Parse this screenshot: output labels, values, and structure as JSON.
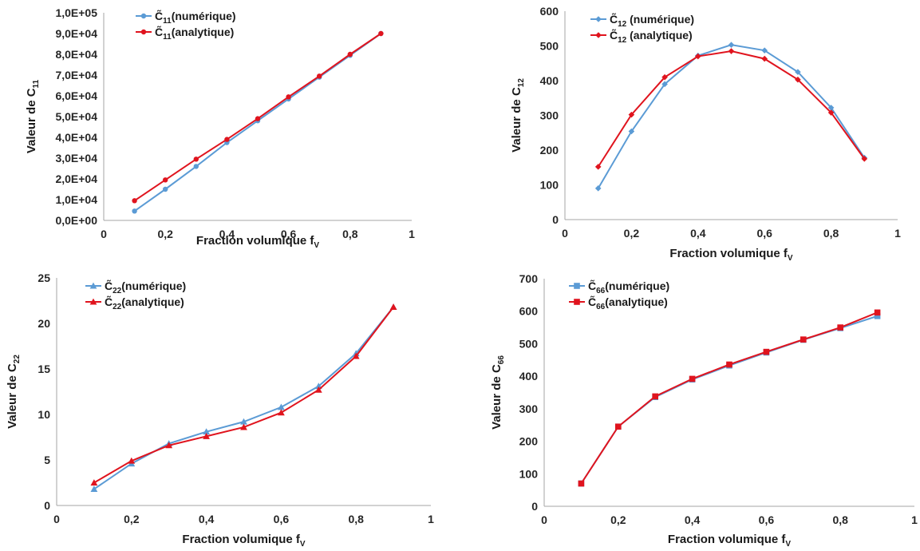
{
  "colors": {
    "numerique": "#5B9BD5",
    "analytique": "#E0141E",
    "axis": "#a6a6a6"
  },
  "chart_data": [
    {
      "type": "line",
      "id": "c11",
      "xlabel": "Fraction volumique f",
      "xlabel_sub": "V",
      "ylabel": "Valeur de C",
      "ylabel_sub": "11",
      "xlim": [
        0,
        1
      ],
      "ylim": [
        0,
        100000
      ],
      "x_ticks": [
        "0",
        "0,2",
        "0,4",
        "0,6",
        "0,8",
        "1"
      ],
      "y_ticks": [
        "0,0E+00",
        "1,0E+04",
        "2,0E+04",
        "3,0E+04",
        "4,0E+04",
        "5,0E+04",
        "6,0E+04",
        "7,0E+04",
        "8,0E+04",
        "9,0E+04",
        "1,0E+05"
      ],
      "legend_position": "top-left",
      "marker": "circle",
      "x": [
        0.1,
        0.2,
        0.3,
        0.4,
        0.5,
        0.6,
        0.7,
        0.8,
        0.9
      ],
      "series": [
        {
          "name": "C̃",
          "name_sub": "11",
          "name_suffix": "(numérique)",
          "values": [
            4500,
            15000,
            26000,
            37500,
            48000,
            58500,
            69000,
            79500,
            90000
          ]
        },
        {
          "name": "C̃",
          "name_sub": "11",
          "name_suffix": "(analytique)",
          "values": [
            9500,
            19500,
            29500,
            39000,
            49000,
            59500,
            69500,
            80000,
            90000
          ]
        }
      ]
    },
    {
      "type": "line",
      "id": "c12",
      "xlabel": "Fraction volumique f",
      "xlabel_sub": "V",
      "ylabel": "Valeur de C",
      "ylabel_sub": "12",
      "xlim": [
        0,
        1
      ],
      "ylim": [
        0,
        600
      ],
      "x_ticks": [
        "0",
        "0,2",
        "0,4",
        "0,6",
        "0,8",
        "1"
      ],
      "y_ticks": [
        "0",
        "100",
        "200",
        "300",
        "400",
        "500",
        "600"
      ],
      "legend_position": "top-left",
      "marker": "diamond",
      "x": [
        0.1,
        0.2,
        0.3,
        0.4,
        0.5,
        0.6,
        0.7,
        0.8,
        0.9
      ],
      "series": [
        {
          "name": "C̃",
          "name_sub": "12",
          "name_suffix": " (numérique)",
          "values": [
            90,
            254,
            390,
            472,
            503,
            487,
            425,
            322,
            178
          ]
        },
        {
          "name": "C̃",
          "name_sub": "12",
          "name_suffix": " (analytique)",
          "values": [
            152,
            302,
            410,
            470,
            485,
            463,
            403,
            308,
            175
          ]
        }
      ]
    },
    {
      "type": "line",
      "id": "c22",
      "xlabel": "Fraction volumique f",
      "xlabel_sub": "V",
      "ylabel": "Valeur de C",
      "ylabel_sub": "22",
      "xlim": [
        0,
        1
      ],
      "ylim": [
        0,
        25
      ],
      "x_ticks": [
        "0",
        "0,2",
        "0,4",
        "0,6",
        "0,8",
        "1"
      ],
      "y_ticks": [
        "0",
        "5",
        "10",
        "15",
        "20",
        "25"
      ],
      "legend_position": "top-left",
      "marker": "triangle",
      "x": [
        0.1,
        0.2,
        0.3,
        0.4,
        0.5,
        0.6,
        0.7,
        0.8,
        0.9
      ],
      "series": [
        {
          "name": "C̃",
          "name_sub": "22",
          "name_suffix": "(numérique)",
          "values": [
            1.8,
            4.6,
            6.8,
            8.1,
            9.2,
            10.8,
            13.1,
            16.7,
            21.8
          ]
        },
        {
          "name": "C̃",
          "name_sub": "22",
          "name_suffix": "(analytique)",
          "values": [
            2.5,
            4.9,
            6.6,
            7.6,
            8.6,
            10.2,
            12.7,
            16.4,
            21.8
          ]
        }
      ]
    },
    {
      "type": "line",
      "id": "c66",
      "xlabel": "Fraction volumique f",
      "xlabel_sub": "V",
      "ylabel": "Valeur de C",
      "ylabel_sub": "66",
      "xlim": [
        0,
        1
      ],
      "ylim": [
        0,
        700
      ],
      "x_ticks": [
        "0",
        "0,2",
        "0,4",
        "0,6",
        "0,8",
        "1"
      ],
      "y_ticks": [
        "0",
        "100",
        "200",
        "300",
        "400",
        "500",
        "600",
        "700"
      ],
      "legend_position": "top-left",
      "marker": "square",
      "x": [
        0.1,
        0.2,
        0.3,
        0.4,
        0.5,
        0.6,
        0.7,
        0.8,
        0.9
      ],
      "series": [
        {
          "name": "C̃",
          "name_sub": "66",
          "name_suffix": "(numérique)",
          "values": [
            70,
            245,
            336,
            390,
            433,
            473,
            512,
            548,
            585
          ]
        },
        {
          "name": "C̃",
          "name_sub": "66",
          "name_suffix": "(analytique)",
          "values": [
            70,
            245,
            338,
            392,
            436,
            475,
            513,
            550,
            596
          ]
        }
      ]
    }
  ]
}
